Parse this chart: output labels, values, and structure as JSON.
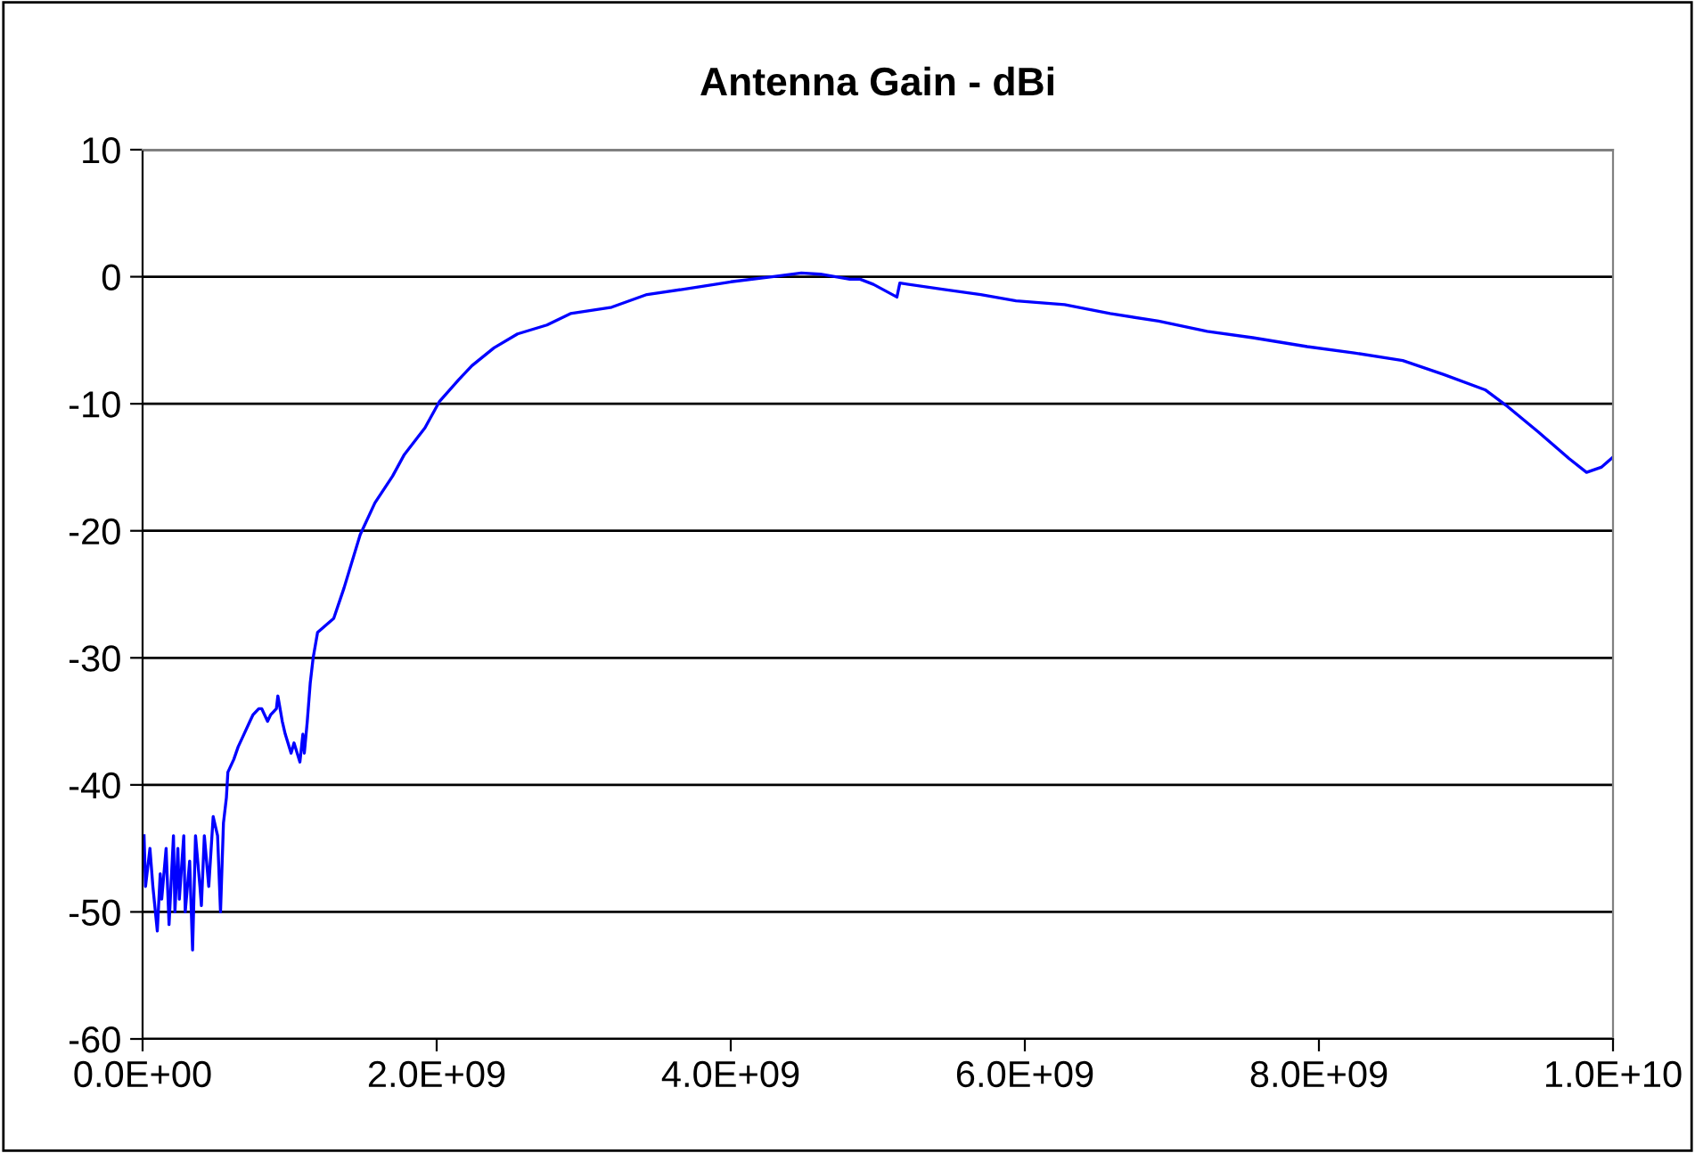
{
  "chart_data": {
    "type": "line",
    "title": "Antenna Gain - dBi",
    "x": [
      10000000.0,
      20000000.0,
      50000000.0,
      70000000.0,
      100000000.0,
      120000000.0,
      130000000.0,
      160000000.0,
      180000000.0,
      210000000.0,
      220000000.0,
      240000000.0,
      250000000.0,
      280000000.0,
      290000000.0,
      320000000.0,
      340000000.0,
      360000000.0,
      390000000.0,
      400000000.0,
      420000000.0,
      450000000.0,
      480000000.0,
      510000000.0,
      530000000.0,
      550000000.0,
      570000000.0,
      580000000.0,
      620000000.0,
      650000000.0,
      690000000.0,
      730000000.0,
      750000000.0,
      790000000.0,
      810000000.0,
      850000000.0,
      870000000.0,
      910000000.0,
      920000000.0,
      950000000.0,
      970000000.0,
      1010000000.0,
      1030000000.0,
      1070000000.0,
      1090000000.0,
      1100000000.0,
      1120000000.0,
      1140000000.0,
      1160000000.0,
      1190000000.0,
      1300000000.0,
      1370000000.0,
      1480000000.0,
      1580000000.0,
      1700000000.0,
      1780000000.0,
      1920000000.0,
      2020000000.0,
      2150000000.0,
      2240000000.0,
      2390000000.0,
      2550000000.0,
      2750000000.0,
      2910000000.0,
      3190000000.0,
      3430000000.0,
      3670000000.0,
      4000000000.0,
      4280000000.0,
      4480000000.0,
      4610000000.0,
      4810000000.0,
      4880000000.0,
      4970000000.0,
      5130000000.0,
      5150000000.0,
      5450000000.0,
      5700000000.0,
      5940000000.0,
      6270000000.0,
      6580000000.0,
      6910000000.0,
      7240000000.0,
      7550000000.0,
      7920000000.0,
      8240000000.0,
      8570000000.0,
      8850000000.0,
      9130000000.0,
      9270000000.0,
      9490000000.0,
      9700000000.0,
      9820000000.0,
      9920000000.0,
      10000000000.0
    ],
    "series": [
      {
        "color": "#0000ff",
        "values": [
          -44,
          -48,
          -45,
          -48,
          -51.5,
          -47,
          -49,
          -45,
          -51,
          -44,
          -50,
          -45,
          -49,
          -44,
          -50,
          -46,
          -53,
          -44,
          -48,
          -49.5,
          -44,
          -48,
          -42.5,
          -44,
          -50,
          -43,
          -41,
          -39,
          -38,
          -37,
          -36,
          -35,
          -34.5,
          -34,
          -34,
          -35,
          -34.5,
          -34,
          -33,
          -35,
          -36,
          -37.5,
          -36.7,
          -38.2,
          -36,
          -37.5,
          -35,
          -32,
          -30,
          -28,
          -26.9,
          -24.5,
          -20.3,
          -17.8,
          -15.7,
          -14,
          -11.9,
          -9.8,
          -8.1,
          -7,
          -5.6,
          -4.5,
          -3.8,
          -2.9,
          -2.4,
          -1.4,
          -1,
          -0.4,
          0,
          0.3,
          0.2,
          -0.2,
          -0.2,
          -0.6,
          -1.6,
          -0.5,
          -1,
          -1.4,
          -1.9,
          -2.2,
          -2.9,
          -3.5,
          -4.3,
          -4.8,
          -5.5,
          -6,
          -6.6,
          -7.7,
          -8.9,
          -10.1,
          -12.2,
          -14.3,
          -15.4,
          -15,
          -14.2
        ]
      }
    ],
    "xlim": [
      0,
      10000000000.0
    ],
    "xticks": [
      {
        "value": 0,
        "label": "0.0E+00"
      },
      {
        "value": 2000000000.0,
        "label": "2.0E+09"
      },
      {
        "value": 4000000000.0,
        "label": "4.0E+09"
      },
      {
        "value": 6000000000.0,
        "label": "6.0E+09"
      },
      {
        "value": 8000000000.0,
        "label": "8.0E+09"
      },
      {
        "value": 10000000000.0,
        "label": "1.0E+10"
      }
    ],
    "ylim": [
      -60,
      10
    ],
    "yticks": [
      -60,
      -50,
      -40,
      -30,
      -20,
      -10,
      0,
      10
    ],
    "grid": "y",
    "legend": false,
    "marker": "none",
    "line_style": "solid"
  }
}
